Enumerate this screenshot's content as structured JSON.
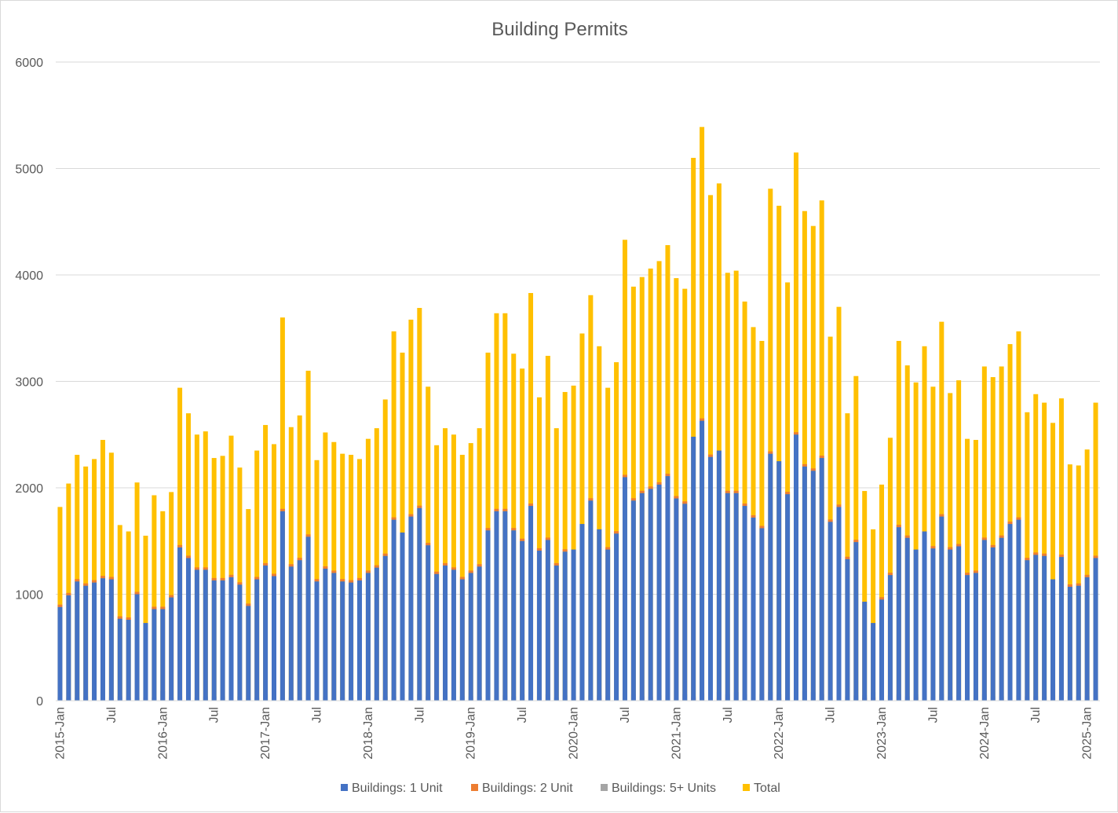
{
  "chart_data": {
    "type": "bar",
    "stacked": false,
    "title": "Building Permits",
    "xlabel": "",
    "ylabel": "",
    "ylim": [
      0,
      6000
    ],
    "yticks": [
      0,
      1000,
      2000,
      3000,
      4000,
      5000,
      6000
    ],
    "grid": true,
    "legend_position": "bottom",
    "categories": [
      "2015-Jan",
      "2015-Feb",
      "2015-Mar",
      "2015-Apr",
      "2015-May",
      "2015-Jun",
      "2015-Jul",
      "2015-Aug",
      "2015-Sep",
      "2015-Oct",
      "2015-Nov",
      "2015-Dec",
      "2016-Jan",
      "2016-Feb",
      "2016-Mar",
      "2016-Apr",
      "2016-May",
      "2016-Jun",
      "2016-Jul",
      "2016-Aug",
      "2016-Sep",
      "2016-Oct",
      "2016-Nov",
      "2016-Dec",
      "2017-Jan",
      "2017-Feb",
      "2017-Mar",
      "2017-Apr",
      "2017-May",
      "2017-Jun",
      "2017-Jul",
      "2017-Aug",
      "2017-Sep",
      "2017-Oct",
      "2017-Nov",
      "2017-Dec",
      "2018-Jan",
      "2018-Feb",
      "2018-Mar",
      "2018-Apr",
      "2018-May",
      "2018-Jun",
      "2018-Jul",
      "2018-Aug",
      "2018-Sep",
      "2018-Oct",
      "2018-Nov",
      "2018-Dec",
      "2019-Jan",
      "2019-Feb",
      "2019-Mar",
      "2019-Apr",
      "2019-May",
      "2019-Jun",
      "2019-Jul",
      "2019-Aug",
      "2019-Sep",
      "2019-Oct",
      "2019-Nov",
      "2019-Dec",
      "2020-Jan",
      "2020-Feb",
      "2020-Mar",
      "2020-Apr",
      "2020-May",
      "2020-Jun",
      "2020-Jul",
      "2020-Aug",
      "2020-Sep",
      "2020-Oct",
      "2020-Nov",
      "2020-Dec",
      "2021-Jan",
      "2021-Feb",
      "2021-Mar",
      "2021-Apr",
      "2021-May",
      "2021-Jun",
      "2021-Jul",
      "2021-Aug",
      "2021-Sep",
      "2021-Oct",
      "2021-Nov",
      "2021-Dec",
      "2022-Jan",
      "2022-Feb",
      "2022-Mar",
      "2022-Apr",
      "2022-May",
      "2022-Jun",
      "2022-Jul",
      "2022-Aug",
      "2022-Sep",
      "2022-Oct",
      "2022-Nov",
      "2022-Dec",
      "2023-Jan",
      "2023-Feb",
      "2023-Mar",
      "2023-Apr",
      "2023-May",
      "2023-Jun",
      "2023-Jul",
      "2023-Aug",
      "2023-Sep",
      "2023-Oct",
      "2023-Nov",
      "2023-Dec",
      "2024-Jan",
      "2024-Feb",
      "2024-Mar",
      "2024-Apr",
      "2024-May",
      "2024-Jun",
      "2024-Jul",
      "2024-Aug",
      "2024-Sep",
      "2024-Oct",
      "2024-Nov",
      "2024-Dec",
      "2025-Jan",
      "2025-Feb"
    ],
    "tick_labels": [
      {
        "index": 0,
        "label": "2015-Jan"
      },
      {
        "index": 6,
        "label": "Jul"
      },
      {
        "index": 12,
        "label": "2016-Jan"
      },
      {
        "index": 18,
        "label": "Jul"
      },
      {
        "index": 24,
        "label": "2017-Jan"
      },
      {
        "index": 30,
        "label": "Jul"
      },
      {
        "index": 36,
        "label": "2018-Jan"
      },
      {
        "index": 42,
        "label": "Jul"
      },
      {
        "index": 48,
        "label": "2019-Jan"
      },
      {
        "index": 54,
        "label": "Jul"
      },
      {
        "index": 60,
        "label": "2020-Jan"
      },
      {
        "index": 66,
        "label": "Jul"
      },
      {
        "index": 72,
        "label": "2021-Jan"
      },
      {
        "index": 78,
        "label": "Jul"
      },
      {
        "index": 84,
        "label": "2022-Jan"
      },
      {
        "index": 90,
        "label": "Jul"
      },
      {
        "index": 96,
        "label": "2023-Jan"
      },
      {
        "index": 102,
        "label": "Jul"
      },
      {
        "index": 108,
        "label": "2024-Jan"
      },
      {
        "index": 114,
        "label": "Jul"
      },
      {
        "index": 120,
        "label": "2025-Jan"
      }
    ],
    "series": [
      {
        "name": "Buildings: 1 Unit",
        "color": "#4472c4",
        "values": [
          880,
          990,
          1120,
          1080,
          1110,
          1150,
          1140,
          770,
          760,
          1000,
          730,
          860,
          860,
          970,
          1440,
          1340,
          1230,
          1230,
          1130,
          1130,
          1160,
          1090,
          890,
          1140,
          1270,
          1170,
          1780,
          1260,
          1320,
          1540,
          1120,
          1240,
          1200,
          1120,
          1110,
          1130,
          1200,
          1250,
          1360,
          1700,
          1580,
          1730,
          1810,
          1460,
          1190,
          1270,
          1230,
          1140,
          1200,
          1260,
          1600,
          1780,
          1780,
          1600,
          1500,
          1830,
          1410,
          1510,
          1270,
          1400,
          1420,
          1660,
          1880,
          1610,
          1420,
          1570,
          2100,
          1880,
          1950,
          1990,
          2030,
          2110,
          1900,
          1850,
          2480,
          2630,
          2290,
          2350,
          1950,
          1950,
          1830,
          1720,
          1620,
          2320,
          2250,
          1940,
          2500,
          2200,
          2160,
          2280,
          1680,
          1820,
          1330,
          1490,
          930,
          730,
          950,
          1180,
          1630,
          1530,
          1420,
          1590,
          1430,
          1730,
          1420,
          1450,
          1180,
          1200,
          1510,
          1440,
          1530,
          1660,
          1700,
          1320,
          1370,
          1360,
          1140,
          1350,
          1070,
          1080,
          1160,
          1340
        ]
      },
      {
        "name": "Buildings: 2 Unit",
        "color": "#ed7d31",
        "values": [
          22,
          10,
          12,
          8,
          16,
          18,
          10,
          20,
          10,
          18,
          28,
          12,
          10,
          10,
          20,
          10,
          12,
          14,
          12,
          14,
          14,
          12,
          8,
          14,
          16,
          14,
          14,
          10,
          10,
          16,
          14,
          12,
          10,
          12,
          12,
          12,
          14,
          16,
          16,
          10,
          24,
          12,
          10,
          12,
          10,
          12,
          14,
          12,
          14,
          14,
          10,
          12,
          14,
          12,
          16,
          14,
          12,
          12,
          12,
          14,
          34,
          44,
          14,
          24,
          14,
          16,
          16,
          16,
          20,
          12,
          16,
          16,
          14,
          12,
          26,
          16,
          20,
          24,
          14,
          14,
          14,
          14,
          14,
          18,
          24,
          12,
          16,
          18,
          22,
          14,
          14,
          14,
          10,
          12,
          28,
          32,
          14,
          16,
          20,
          20,
          34,
          24,
          20,
          14,
          14,
          14,
          16,
          18,
          16,
          20,
          20,
          20,
          14,
          14,
          14,
          14,
          160,
          18,
          14,
          14,
          14,
          22
        ]
      },
      {
        "name": "Buildings: 5+ Units",
        "color": "#a5a5a5",
        "values": [
          30,
          30,
          30,
          40,
          30,
          80,
          30,
          40,
          30,
          30,
          40,
          30,
          90,
          30,
          40,
          20,
          30,
          40,
          40,
          40,
          60,
          40,
          20,
          30,
          60,
          40,
          30,
          30,
          30,
          30,
          20,
          40,
          20,
          30,
          30,
          40,
          40,
          30,
          40,
          40,
          60,
          70,
          60,
          40,
          40,
          30,
          40,
          40,
          40,
          40,
          40,
          50,
          50,
          40,
          60,
          80,
          40,
          60,
          30,
          50,
          50,
          30,
          50,
          50,
          40,
          40,
          70,
          60,
          40,
          40,
          50,
          50,
          100,
          60,
          40,
          70,
          80,
          80,
          60,
          80,
          60,
          60,
          60,
          80,
          60,
          40,
          80,
          90,
          80,
          60,
          40,
          60,
          40,
          50,
          50,
          80,
          50,
          50,
          60,
          40,
          60,
          60,
          40,
          60,
          40,
          50,
          40,
          50,
          60,
          40,
          40,
          40,
          50,
          40,
          40,
          40,
          50,
          50,
          40,
          40,
          40,
          50
        ]
      },
      {
        "name": "Total",
        "color": "#ffc000",
        "values": [
          1820,
          2040,
          2310,
          2200,
          2270,
          2450,
          2330,
          1650,
          1590,
          2050,
          1550,
          1930,
          1780,
          1960,
          2940,
          2700,
          2500,
          2530,
          2280,
          2300,
          2490,
          2190,
          1800,
          2350,
          2590,
          2410,
          3600,
          2570,
          2680,
          3100,
          2260,
          2520,
          2430,
          2320,
          2310,
          2270,
          2460,
          2560,
          2830,
          3470,
          3270,
          3580,
          3690,
          2950,
          2400,
          2560,
          2500,
          2310,
          2420,
          2560,
          3270,
          3640,
          3640,
          3260,
          3120,
          3830,
          2850,
          3240,
          2560,
          2900,
          2960,
          3450,
          3810,
          3330,
          2940,
          3180,
          4330,
          3890,
          3980,
          4060,
          4130,
          4280,
          3970,
          3870,
          5100,
          5390,
          4750,
          4860,
          4020,
          4040,
          3750,
          3510,
          3380,
          4810,
          4650,
          3930,
          5150,
          4600,
          4460,
          4700,
          3420,
          3700,
          2700,
          3050,
          1970,
          1610,
          2030,
          2470,
          3380,
          3150,
          2990,
          3330,
          2950,
          3560,
          2890,
          3010,
          2460,
          2450,
          3140,
          3040,
          3140,
          3350,
          3470,
          2710,
          2880,
          2800,
          2610,
          2840,
          2220,
          2210,
          2360,
          2800
        ]
      }
    ]
  }
}
